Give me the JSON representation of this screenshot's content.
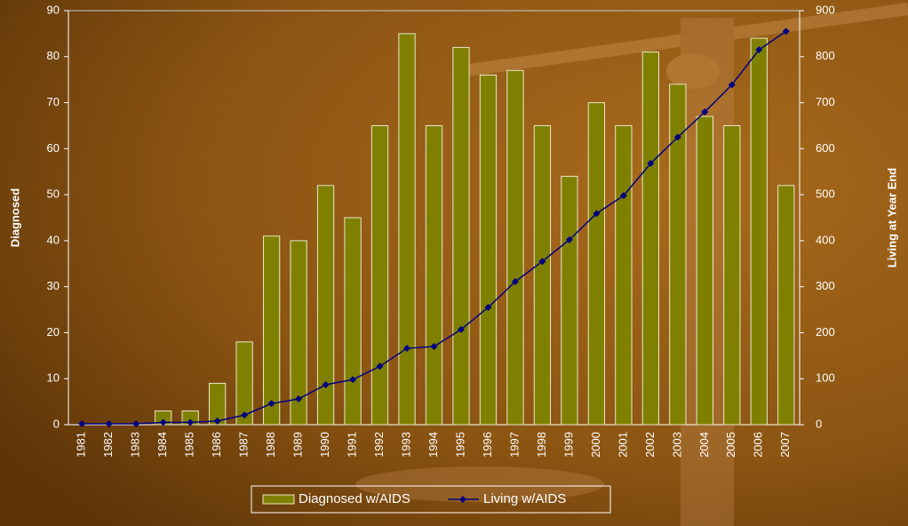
{
  "chart_data": {
    "type": "bar-line",
    "categories": [
      "1981",
      "1982",
      "1983",
      "1984",
      "1985",
      "1986",
      "1987",
      "1988",
      "1989",
      "1990",
      "1991",
      "1992",
      "1993",
      "1994",
      "1995",
      "1996",
      "1997",
      "1998",
      "1999",
      "2000",
      "2001",
      "2002",
      "2003",
      "2004",
      "2005",
      "2006",
      "2007"
    ],
    "ylabel": "Diagnosed",
    "y2label": "Living at Year End",
    "ylim": [
      0,
      90
    ],
    "yticks": [
      0,
      10,
      20,
      30,
      40,
      50,
      60,
      70,
      80,
      90
    ],
    "y2lim": [
      0,
      900
    ],
    "y2ticks": [
      0,
      100,
      200,
      300,
      400,
      500,
      600,
      700,
      800,
      900
    ],
    "series": [
      {
        "name": "Diagnosed w/AIDS",
        "type": "bar",
        "color": "#808000",
        "values": [
          0,
          0,
          0,
          3,
          3,
          9,
          18,
          41,
          40,
          52,
          45,
          65,
          85,
          65,
          82,
          76,
          77,
          65,
          54,
          70,
          65,
          81,
          74,
          67,
          65,
          84,
          52
        ]
      },
      {
        "name": "Living w/AIDS",
        "type": "line",
        "axis": "y2",
        "color": "#000080",
        "values": [
          2,
          2,
          2,
          5,
          5,
          8,
          21,
          46,
          56,
          87,
          98,
          127,
          166,
          170,
          207,
          255,
          311,
          355,
          402,
          459,
          498,
          568,
          625,
          680,
          739,
          815,
          855
        ]
      }
    ],
    "grid": false
  }
}
